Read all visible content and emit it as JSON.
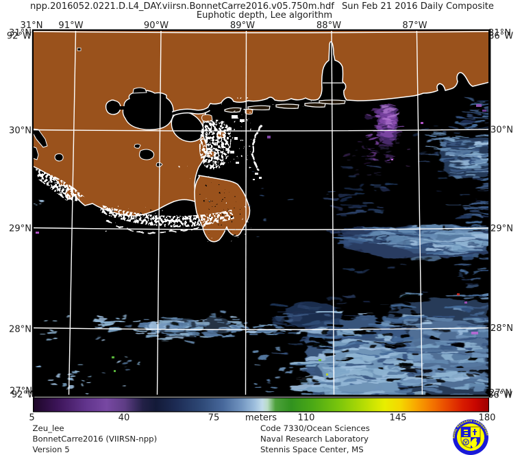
{
  "title_bar": {
    "filename": "npp.2016052.0221.D.L4_DAY.viirsn.BonnetCarre2016.v05.750m.hdf",
    "composite_label": "Sun Feb 21 2016 Daily Composite",
    "subtitle": "Euphotic depth, Lee algorithm"
  },
  "map": {
    "top_axis_labels": [
      "31°N",
      "91°W",
      "90°W",
      "89°W",
      "88°W",
      "87°W"
    ],
    "left_axis_labels": [
      "30°N",
      "29°N",
      "28°N"
    ],
    "right_axis_labels": [
      "30°N",
      "29°N",
      "28°N"
    ],
    "corner_labels": {
      "top_left_lat": "31°N",
      "top_left_lon": "92°W",
      "top_right_lat": "31°N",
      "top_right_lon": "86°W",
      "bottom_left_lat": "27°N",
      "bottom_left_lon": "92°W",
      "bottom_right_lat": "27°N",
      "bottom_right_lon": "86°W"
    },
    "colors": {
      "land": "#9a521c",
      "water": "#000000",
      "gridline": "#ffffff",
      "coastline": "#ffffff",
      "data_purple": "#8c4fb0",
      "data_blue_light": "#8fb2d2",
      "data_blue_mid": "#456b9a",
      "data_blue_dark": "#1d2c50"
    }
  },
  "colorbar": {
    "units_label": "meters",
    "tick_labels": [
      "5",
      "40",
      "75",
      "110",
      "145",
      "180"
    ],
    "min": 5,
    "max": 180,
    "gradient": [
      {
        "value": 5,
        "color": "#1d0628"
      },
      {
        "value": 14,
        "color": "#3c1458"
      },
      {
        "value": 25,
        "color": "#61348c"
      },
      {
        "value": 33,
        "color": "#7748a2"
      },
      {
        "value": 40,
        "color": "#5e3d85"
      },
      {
        "value": 47,
        "color": "#222046"
      },
      {
        "value": 52,
        "color": "#131a38"
      },
      {
        "value": 60,
        "color": "#1d2c55"
      },
      {
        "value": 70,
        "color": "#2f4a78"
      },
      {
        "value": 78,
        "color": "#48699c"
      },
      {
        "value": 85,
        "color": "#7295c0"
      },
      {
        "value": 90,
        "color": "#9dbedd"
      },
      {
        "value": 93,
        "color": "#c2dcea"
      },
      {
        "value": 95,
        "color": "#b9dcc4"
      },
      {
        "value": 98,
        "color": "#4da03c"
      },
      {
        "value": 104,
        "color": "#31921f"
      },
      {
        "value": 112,
        "color": "#4aa816"
      },
      {
        "value": 122,
        "color": "#78c40c"
      },
      {
        "value": 132,
        "color": "#b5dc04"
      },
      {
        "value": 140,
        "color": "#e8ee00"
      },
      {
        "value": 146,
        "color": "#f4d800"
      },
      {
        "value": 152,
        "color": "#f8a800"
      },
      {
        "value": 158,
        "color": "#f47800"
      },
      {
        "value": 164,
        "color": "#e84800"
      },
      {
        "value": 170,
        "color": "#d81c00"
      },
      {
        "value": 175,
        "color": "#c80600"
      },
      {
        "value": 180,
        "color": "#9c0000"
      }
    ]
  },
  "footer": {
    "left_lines": [
      "Zeu_lee",
      "BonnetCarre2016 (VIIRSN-npp)",
      "Version 5"
    ],
    "right_lines": [
      "Code 7330/Ocean Sciences",
      "Naval Research Laboratory",
      "Stennis Space Center, MS"
    ]
  },
  "logo": {
    "name": "NRL Stennis Space Center seal",
    "ring_text_top": "NAVAL RESEARCH LABORATORY",
    "ring_text_bottom": "STENNIS SPACE CENTER, MS",
    "ring_color": "#1a1ad8",
    "face_color": "#ffff00"
  }
}
